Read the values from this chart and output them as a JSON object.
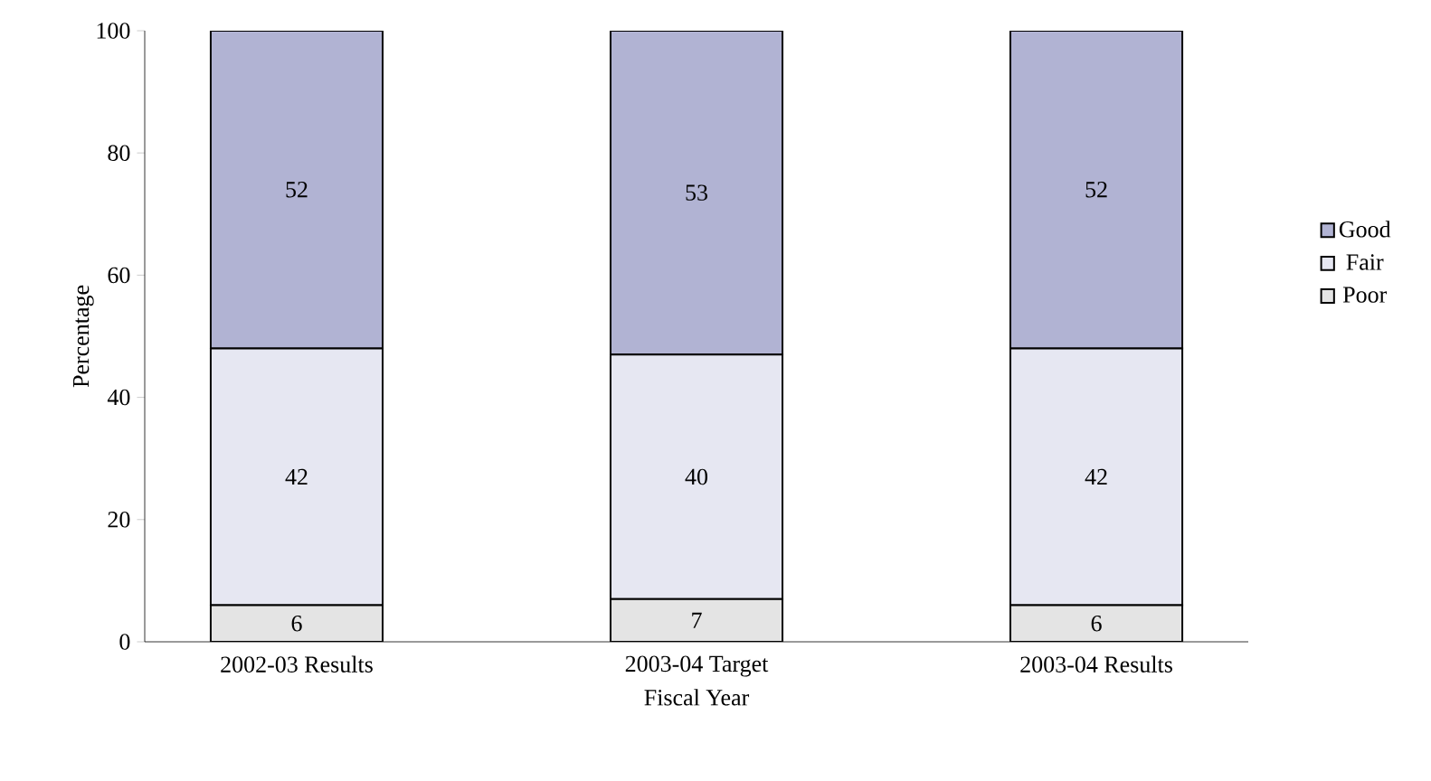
{
  "chart_data": {
    "type": "bar",
    "stacked": true,
    "xlabel": "Fiscal Year",
    "ylabel": "Percentage",
    "categories": [
      "2002-03 Results",
      "2003-04 Target",
      "2003-04 Results"
    ],
    "series": [
      {
        "name": "Poor",
        "color": "#e4e4e4",
        "values": [
          6,
          7,
          6
        ]
      },
      {
        "name": "Fair",
        "color": "#e6e7f2",
        "values": [
          42,
          40,
          42
        ]
      },
      {
        "name": "Good",
        "color": "#b1b3d3",
        "values": [
          52,
          53,
          52
        ]
      }
    ],
    "ylim": [
      0,
      100
    ],
    "yticks": [
      0,
      20,
      40,
      60,
      80,
      100
    ],
    "legend": "right",
    "data_labels": true
  }
}
